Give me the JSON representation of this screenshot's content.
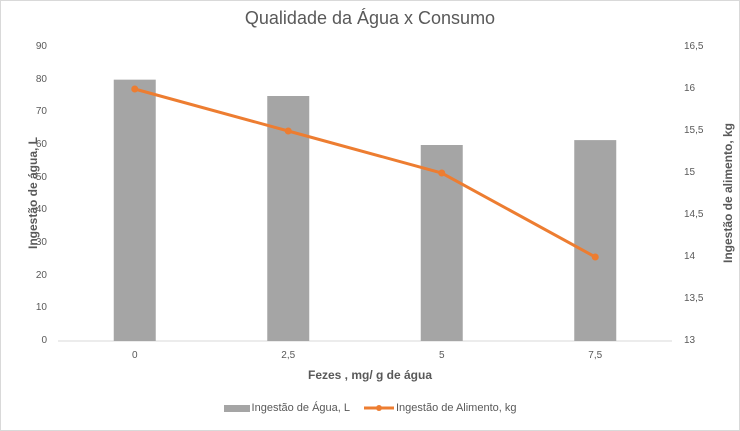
{
  "chart_data": {
    "type": "bar+line",
    "title": "Qualidade da Água x Consumo",
    "xlabel": "Fezes , mg/ g de água",
    "ylabel": "Ingestão de água, L",
    "y2label": "Ingestão de alimento, kg",
    "categories": [
      "0",
      "2,5",
      "5",
      "7,5"
    ],
    "series": [
      {
        "name": "Ingestão de Água, L",
        "type": "bar",
        "axis": "left",
        "color": "#a5a5a5",
        "values": [
          80,
          75,
          60,
          61.5
        ]
      },
      {
        "name": "Ingestão de Alimento, kg",
        "type": "line",
        "axis": "right",
        "color": "#ed7d31",
        "values": [
          16,
          15.5,
          15,
          14
        ]
      }
    ],
    "ylim": [
      0,
      90
    ],
    "y_ticks": [
      "0",
      "10",
      "20",
      "30",
      "40",
      "50",
      "60",
      "70",
      "80",
      "90"
    ],
    "y2lim": [
      13,
      16.5
    ],
    "y2_ticks": [
      "13",
      "13,5",
      "14",
      "14,5",
      "15",
      "15,5",
      "16",
      "16,5"
    ],
    "grid": false,
    "legend_position": "bottom"
  },
  "legend": {
    "bar_label": "Ingestão de Água, L",
    "line_label": "Ingestão de Alimento, kg"
  }
}
